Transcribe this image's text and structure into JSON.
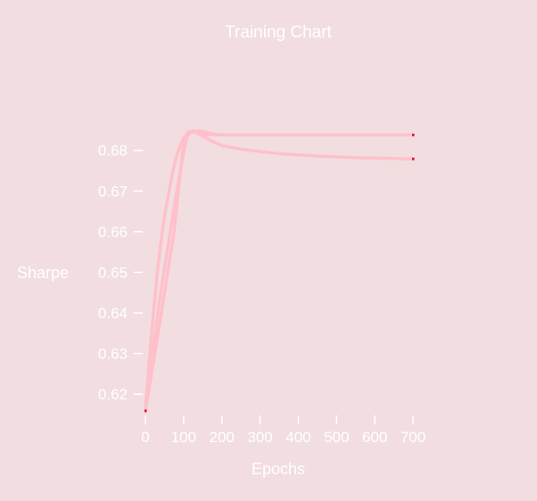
{
  "colors": {
    "background": "#f2dee0",
    "text": "#ffffff",
    "axis": "#ffffff",
    "series": "#ffc0cb",
    "endpoint_marker": "#dc143c"
  },
  "chart_data": {
    "type": "line",
    "title": "Training Chart",
    "xlabel": "Epochs",
    "ylabel": "Sharpe",
    "xlim": [
      0,
      700
    ],
    "ylim": [
      0.615,
      0.683
    ],
    "x_ticks": [
      0,
      100,
      200,
      300,
      400,
      500,
      600,
      700
    ],
    "y_ticks": [
      0.62,
      0.63,
      0.64,
      0.65,
      0.66,
      0.67,
      0.68
    ],
    "grid": false,
    "legend": "none",
    "series": [
      {
        "points": [
          [
            0,
            0.616
          ],
          [
            10,
            0.628
          ],
          [
            20,
            0.639
          ],
          [
            30,
            0.649
          ],
          [
            40,
            0.657
          ],
          [
            50,
            0.664
          ],
          [
            60,
            0.669
          ],
          [
            70,
            0.674
          ],
          [
            80,
            0.678
          ],
          [
            90,
            0.681
          ],
          [
            100,
            0.683
          ],
          [
            110,
            0.684
          ],
          [
            120,
            0.6845
          ],
          [
            130,
            0.6845
          ],
          [
            140,
            0.684
          ],
          [
            150,
            0.6835
          ],
          [
            160,
            0.683
          ],
          [
            175,
            0.6822
          ],
          [
            200,
            0.6812
          ],
          [
            250,
            0.6803
          ],
          [
            300,
            0.6797
          ],
          [
            350,
            0.6792
          ],
          [
            400,
            0.6789
          ],
          [
            450,
            0.6786
          ],
          [
            500,
            0.6784
          ],
          [
            550,
            0.6782
          ],
          [
            600,
            0.6781
          ],
          [
            650,
            0.678
          ],
          [
            700,
            0.6779
          ]
        ]
      },
      {
        "points": [
          [
            0,
            0.616
          ],
          [
            20,
            0.631
          ],
          [
            40,
            0.645
          ],
          [
            60,
            0.657
          ],
          [
            80,
            0.669
          ],
          [
            100,
            0.6795
          ],
          [
            110,
            0.6835
          ],
          [
            120,
            0.6845
          ],
          [
            140,
            0.6848
          ],
          [
            160,
            0.6845
          ],
          [
            180,
            0.684
          ],
          [
            200,
            0.6838
          ],
          [
            300,
            0.6838
          ],
          [
            400,
            0.6838
          ],
          [
            500,
            0.6838
          ],
          [
            600,
            0.6838
          ],
          [
            700,
            0.6838
          ]
        ]
      },
      {
        "points": [
          [
            0,
            0.616
          ],
          [
            25,
            0.63
          ],
          [
            50,
            0.645
          ],
          [
            75,
            0.66
          ],
          [
            100,
            0.682
          ],
          [
            110,
            0.6845
          ],
          [
            125,
            0.6848
          ],
          [
            140,
            0.6844
          ],
          [
            160,
            0.6839
          ],
          [
            200,
            0.6838
          ]
        ]
      }
    ]
  }
}
